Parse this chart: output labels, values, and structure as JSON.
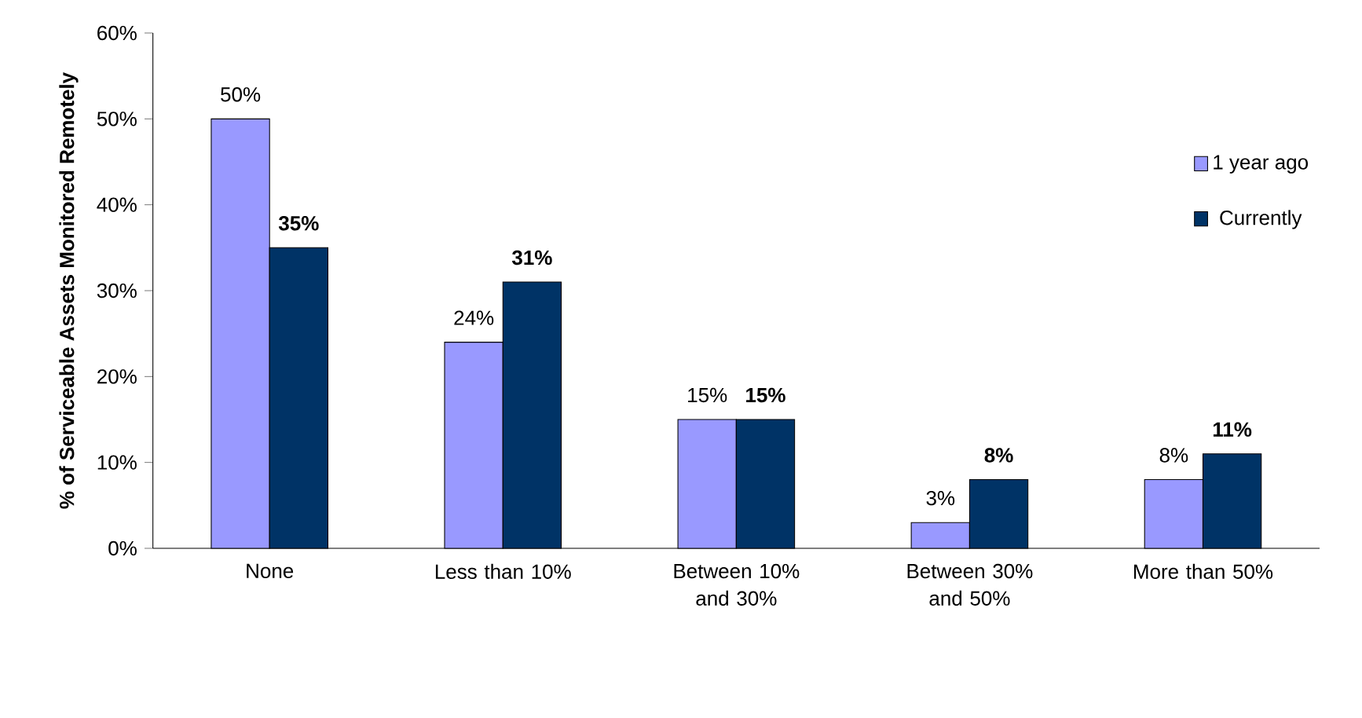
{
  "chart_data": {
    "type": "bar",
    "ylabel": "% of Serviceable Assets Monitored Remotely",
    "categories": [
      "None",
      "Less than 10%",
      "Between 10% and 30%",
      "Between 30% and 50%",
      "More than 50%"
    ],
    "series": [
      {
        "name": "1 year ago",
        "color": "#9999ff",
        "values": [
          50,
          24,
          15,
          3,
          8
        ],
        "value_labels": [
          "50%",
          "24%",
          "15%",
          "3%",
          "8%"
        ]
      },
      {
        "name": "Currently",
        "color": "#003366",
        "values": [
          35,
          31,
          15,
          8,
          11
        ],
        "value_labels": [
          "**35%**",
          "**31%**",
          "**15%**",
          "**8%**",
          "**11%**"
        ]
      }
    ],
    "ylim": [
      0,
      60
    ],
    "yticks": [
      {
        "value": 0,
        "label": "0%"
      },
      {
        "value": 10,
        "label": "10%"
      },
      {
        "value": 20,
        "label": "20%"
      },
      {
        "value": 30,
        "label": "30%"
      },
      {
        "value": 40,
        "label": "40%"
      },
      {
        "value": 50,
        "label": "50%"
      },
      {
        "value": 60,
        "label": "60%"
      }
    ],
    "grid": false,
    "legend": "right"
  }
}
